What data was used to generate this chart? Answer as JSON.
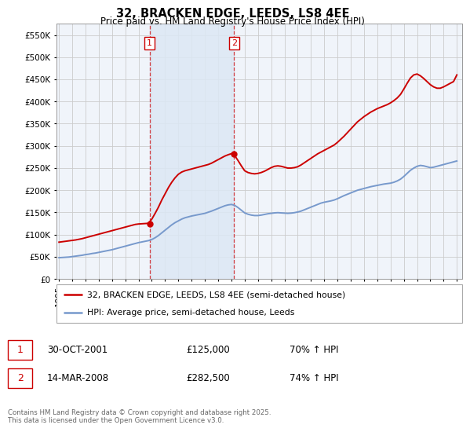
{
  "title": "32, BRACKEN EDGE, LEEDS, LS8 4EE",
  "subtitle": "Price paid vs. HM Land Registry's House Price Index (HPI)",
  "background_color": "#ffffff",
  "plot_bg_color": "#f0f4fa",
  "grid_color": "#cccccc",
  "red_line_color": "#cc0000",
  "blue_line_color": "#7799cc",
  "vline_color": "#cc0000",
  "purchase1_date": "30-OCT-2001",
  "purchase1_price": "£125,000",
  "purchase1_hpi": "70% ↑ HPI",
  "purchase2_date": "14-MAR-2008",
  "purchase2_price": "£282,500",
  "purchase2_hpi": "74% ↑ HPI",
  "legend_line1": "32, BRACKEN EDGE, LEEDS, LS8 4EE (semi-detached house)",
  "legend_line2": "HPI: Average price, semi-detached house, Leeds",
  "footer": "Contains HM Land Registry data © Crown copyright and database right 2025.\nThis data is licensed under the Open Government Licence v3.0.",
  "vline1_x": 2001.83,
  "vline2_x": 2008.21,
  "purchase1_y": 125000,
  "purchase2_y": 282500,
  "hpi_x": [
    1995.0,
    1995.25,
    1995.5,
    1995.75,
    1996.0,
    1996.25,
    1996.5,
    1996.75,
    1997.0,
    1997.25,
    1997.5,
    1997.75,
    1998.0,
    1998.25,
    1998.5,
    1998.75,
    1999.0,
    1999.25,
    1999.5,
    1999.75,
    2000.0,
    2000.25,
    2000.5,
    2000.75,
    2001.0,
    2001.25,
    2001.5,
    2001.75,
    2002.0,
    2002.25,
    2002.5,
    2002.75,
    2003.0,
    2003.25,
    2003.5,
    2003.75,
    2004.0,
    2004.25,
    2004.5,
    2004.75,
    2005.0,
    2005.25,
    2005.5,
    2005.75,
    2006.0,
    2006.25,
    2006.5,
    2006.75,
    2007.0,
    2007.25,
    2007.5,
    2007.75,
    2008.0,
    2008.25,
    2008.5,
    2008.75,
    2009.0,
    2009.25,
    2009.5,
    2009.75,
    2010.0,
    2010.25,
    2010.5,
    2010.75,
    2011.0,
    2011.25,
    2011.5,
    2011.75,
    2012.0,
    2012.25,
    2012.5,
    2012.75,
    2013.0,
    2013.25,
    2013.5,
    2013.75,
    2014.0,
    2014.25,
    2014.5,
    2014.75,
    2015.0,
    2015.25,
    2015.5,
    2015.75,
    2016.0,
    2016.25,
    2016.5,
    2016.75,
    2017.0,
    2017.25,
    2017.5,
    2017.75,
    2018.0,
    2018.25,
    2018.5,
    2018.75,
    2019.0,
    2019.25,
    2019.5,
    2019.75,
    2020.0,
    2020.25,
    2020.5,
    2020.75,
    2021.0,
    2021.25,
    2021.5,
    2021.75,
    2022.0,
    2022.25,
    2022.5,
    2022.75,
    2023.0,
    2023.25,
    2023.5,
    2023.75,
    2024.0,
    2024.25,
    2024.5,
    2024.75,
    2025.0
  ],
  "hpi_y": [
    48000,
    48500,
    49000,
    49500,
    50500,
    51500,
    52500,
    53500,
    55000,
    56000,
    57500,
    58500,
    60000,
    61500,
    63000,
    64500,
    66000,
    68000,
    70000,
    72000,
    74000,
    76000,
    78000,
    80000,
    82000,
    83500,
    85000,
    86500,
    89000,
    93000,
    98000,
    104000,
    110000,
    116000,
    122000,
    127000,
    131000,
    135000,
    138000,
    140000,
    142000,
    143500,
    145000,
    146500,
    148000,
    150500,
    153000,
    156000,
    159000,
    162000,
    165000,
    167000,
    168000,
    166000,
    161000,
    155000,
    149000,
    146000,
    144000,
    143000,
    143000,
    144000,
    145500,
    147000,
    148000,
    149000,
    149500,
    149000,
    148500,
    148000,
    148500,
    149500,
    151000,
    153000,
    156000,
    159000,
    162000,
    165000,
    168000,
    171000,
    173000,
    174500,
    176000,
    178000,
    181000,
    184500,
    188000,
    191000,
    194000,
    197000,
    200000,
    202000,
    204000,
    206000,
    208000,
    209500,
    211000,
    212500,
    214000,
    215000,
    216000,
    218000,
    221000,
    225000,
    231000,
    238000,
    245000,
    250000,
    254000,
    256000,
    255000,
    253000,
    251000,
    252000,
    254000,
    256000,
    258000,
    260000,
    262000,
    264000,
    266000
  ],
  "red_x": [
    1995.0,
    1995.25,
    1995.5,
    1995.75,
    1996.0,
    1996.25,
    1996.5,
    1996.75,
    1997.0,
    1997.25,
    1997.5,
    1997.75,
    1998.0,
    1998.25,
    1998.5,
    1998.75,
    1999.0,
    1999.25,
    1999.5,
    1999.75,
    2000.0,
    2000.25,
    2000.5,
    2000.75,
    2001.0,
    2001.25,
    2001.5,
    2001.75,
    2002.0,
    2002.25,
    2002.5,
    2002.75,
    2003.0,
    2003.25,
    2003.5,
    2003.75,
    2004.0,
    2004.25,
    2004.5,
    2004.75,
    2005.0,
    2005.25,
    2005.5,
    2005.75,
    2006.0,
    2006.25,
    2006.5,
    2006.75,
    2007.0,
    2007.25,
    2007.5,
    2007.75,
    2008.0,
    2008.25,
    2008.5,
    2008.75,
    2009.0,
    2009.25,
    2009.5,
    2009.75,
    2010.0,
    2010.25,
    2010.5,
    2010.75,
    2011.0,
    2011.25,
    2011.5,
    2011.75,
    2012.0,
    2012.25,
    2012.5,
    2012.75,
    2013.0,
    2013.25,
    2013.5,
    2013.75,
    2014.0,
    2014.25,
    2014.5,
    2014.75,
    2015.0,
    2015.25,
    2015.5,
    2015.75,
    2016.0,
    2016.25,
    2016.5,
    2016.75,
    2017.0,
    2017.25,
    2017.5,
    2017.75,
    2018.0,
    2018.25,
    2018.5,
    2018.75,
    2019.0,
    2019.25,
    2019.5,
    2019.75,
    2020.0,
    2020.25,
    2020.5,
    2020.75,
    2021.0,
    2021.25,
    2021.5,
    2021.75,
    2022.0,
    2022.25,
    2022.5,
    2022.75,
    2023.0,
    2023.25,
    2023.5,
    2023.75,
    2024.0,
    2024.25,
    2024.5,
    2024.75,
    2025.0
  ],
  "red_y": [
    83000,
    84000,
    85000,
    86000,
    87000,
    88000,
    89500,
    91000,
    93000,
    95000,
    97000,
    99000,
    101000,
    103000,
    105000,
    107000,
    109000,
    111000,
    113000,
    115000,
    117000,
    119000,
    121000,
    123000,
    124000,
    124500,
    125000,
    125500,
    135000,
    148000,
    162000,
    178000,
    192000,
    206000,
    218000,
    228000,
    236000,
    241000,
    244000,
    246000,
    248000,
    250000,
    252000,
    254000,
    256000,
    258000,
    261000,
    265000,
    269000,
    273000,
    277000,
    280000,
    282500,
    278000,
    267000,
    255000,
    244000,
    240000,
    238000,
    237000,
    238000,
    240000,
    243000,
    247000,
    251000,
    254000,
    255000,
    254000,
    252000,
    250000,
    250000,
    251000,
    253000,
    257000,
    262000,
    267000,
    272000,
    277000,
    282000,
    286000,
    290000,
    294000,
    298000,
    302000,
    308000,
    315000,
    322000,
    330000,
    338000,
    346000,
    354000,
    360000,
    366000,
    371000,
    376000,
    380000,
    384000,
    387000,
    390000,
    393000,
    397000,
    402000,
    408000,
    416000,
    428000,
    441000,
    453000,
    460000,
    462000,
    458000,
    452000,
    445000,
    438000,
    433000,
    430000,
    430000,
    433000,
    437000,
    441000,
    445000,
    460000
  ],
  "xtick_years": [
    1995,
    1996,
    1997,
    1998,
    1999,
    2000,
    2001,
    2002,
    2003,
    2004,
    2005,
    2006,
    2007,
    2008,
    2009,
    2010,
    2011,
    2012,
    2013,
    2014,
    2015,
    2016,
    2017,
    2018,
    2019,
    2020,
    2021,
    2022,
    2023,
    2024,
    2025
  ],
  "ylim": [
    0,
    575000
  ],
  "yticks": [
    0,
    50000,
    100000,
    150000,
    200000,
    250000,
    300000,
    350000,
    400000,
    450000,
    500000,
    550000
  ]
}
